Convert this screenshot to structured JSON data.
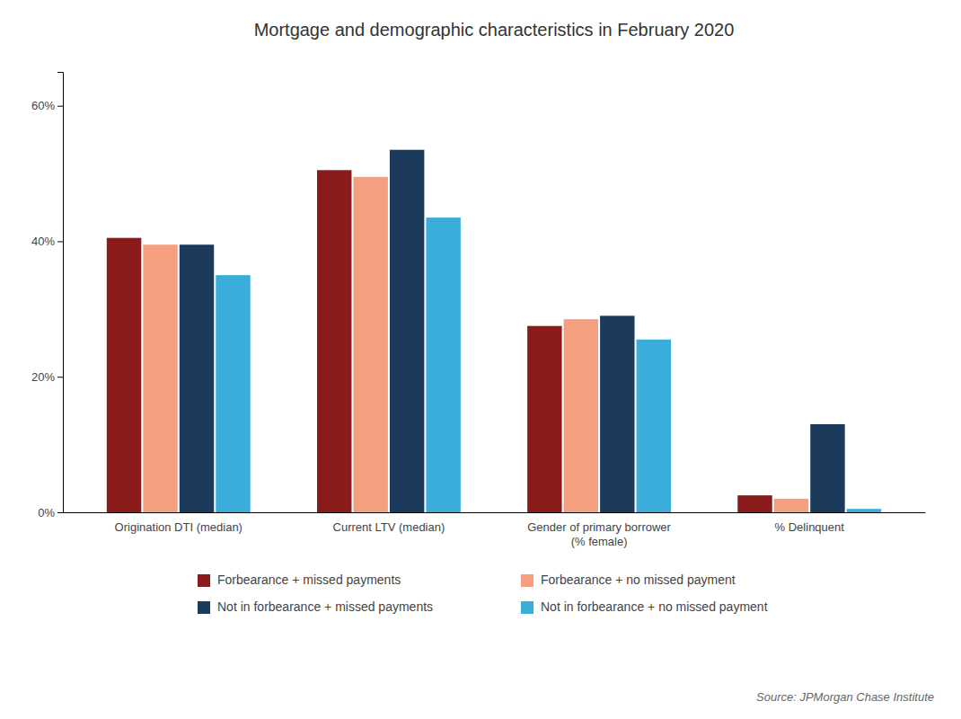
{
  "chart_data": {
    "type": "bar",
    "title": "Mortgage and demographic characteristics in February 2020",
    "categories": [
      "Origination DTI (median)",
      "Current LTV (median)",
      "Gender of primary borrower\n(% female)",
      "% Delinquent"
    ],
    "series": [
      {
        "name": "Forbearance + missed payments",
        "color": "#8B1A1A",
        "values": [
          40.5,
          50.5,
          27.5,
          2.5
        ]
      },
      {
        "name": "Forbearance + no missed payment",
        "color": "#F4A080",
        "values": [
          39.5,
          49.5,
          28.5,
          2.0
        ]
      },
      {
        "name": "Not in forbearance + missed payments",
        "color": "#1B3A5C",
        "values": [
          39.5,
          53.5,
          29.0,
          13.0
        ]
      },
      {
        "name": "Not in forbearance + no missed payment",
        "color": "#3AADDA",
        "values": [
          35.0,
          43.5,
          25.5,
          0.5
        ]
      }
    ],
    "ylim": [
      0,
      65
    ],
    "yticks": [
      {
        "value": 0,
        "label": "0%"
      },
      {
        "value": 20,
        "label": "20%"
      },
      {
        "value": 40,
        "label": "40%"
      },
      {
        "value": 60,
        "label": "60%"
      }
    ],
    "grid": false,
    "legend": "bottom",
    "source": "Source: JPMorgan Chase Institute"
  }
}
